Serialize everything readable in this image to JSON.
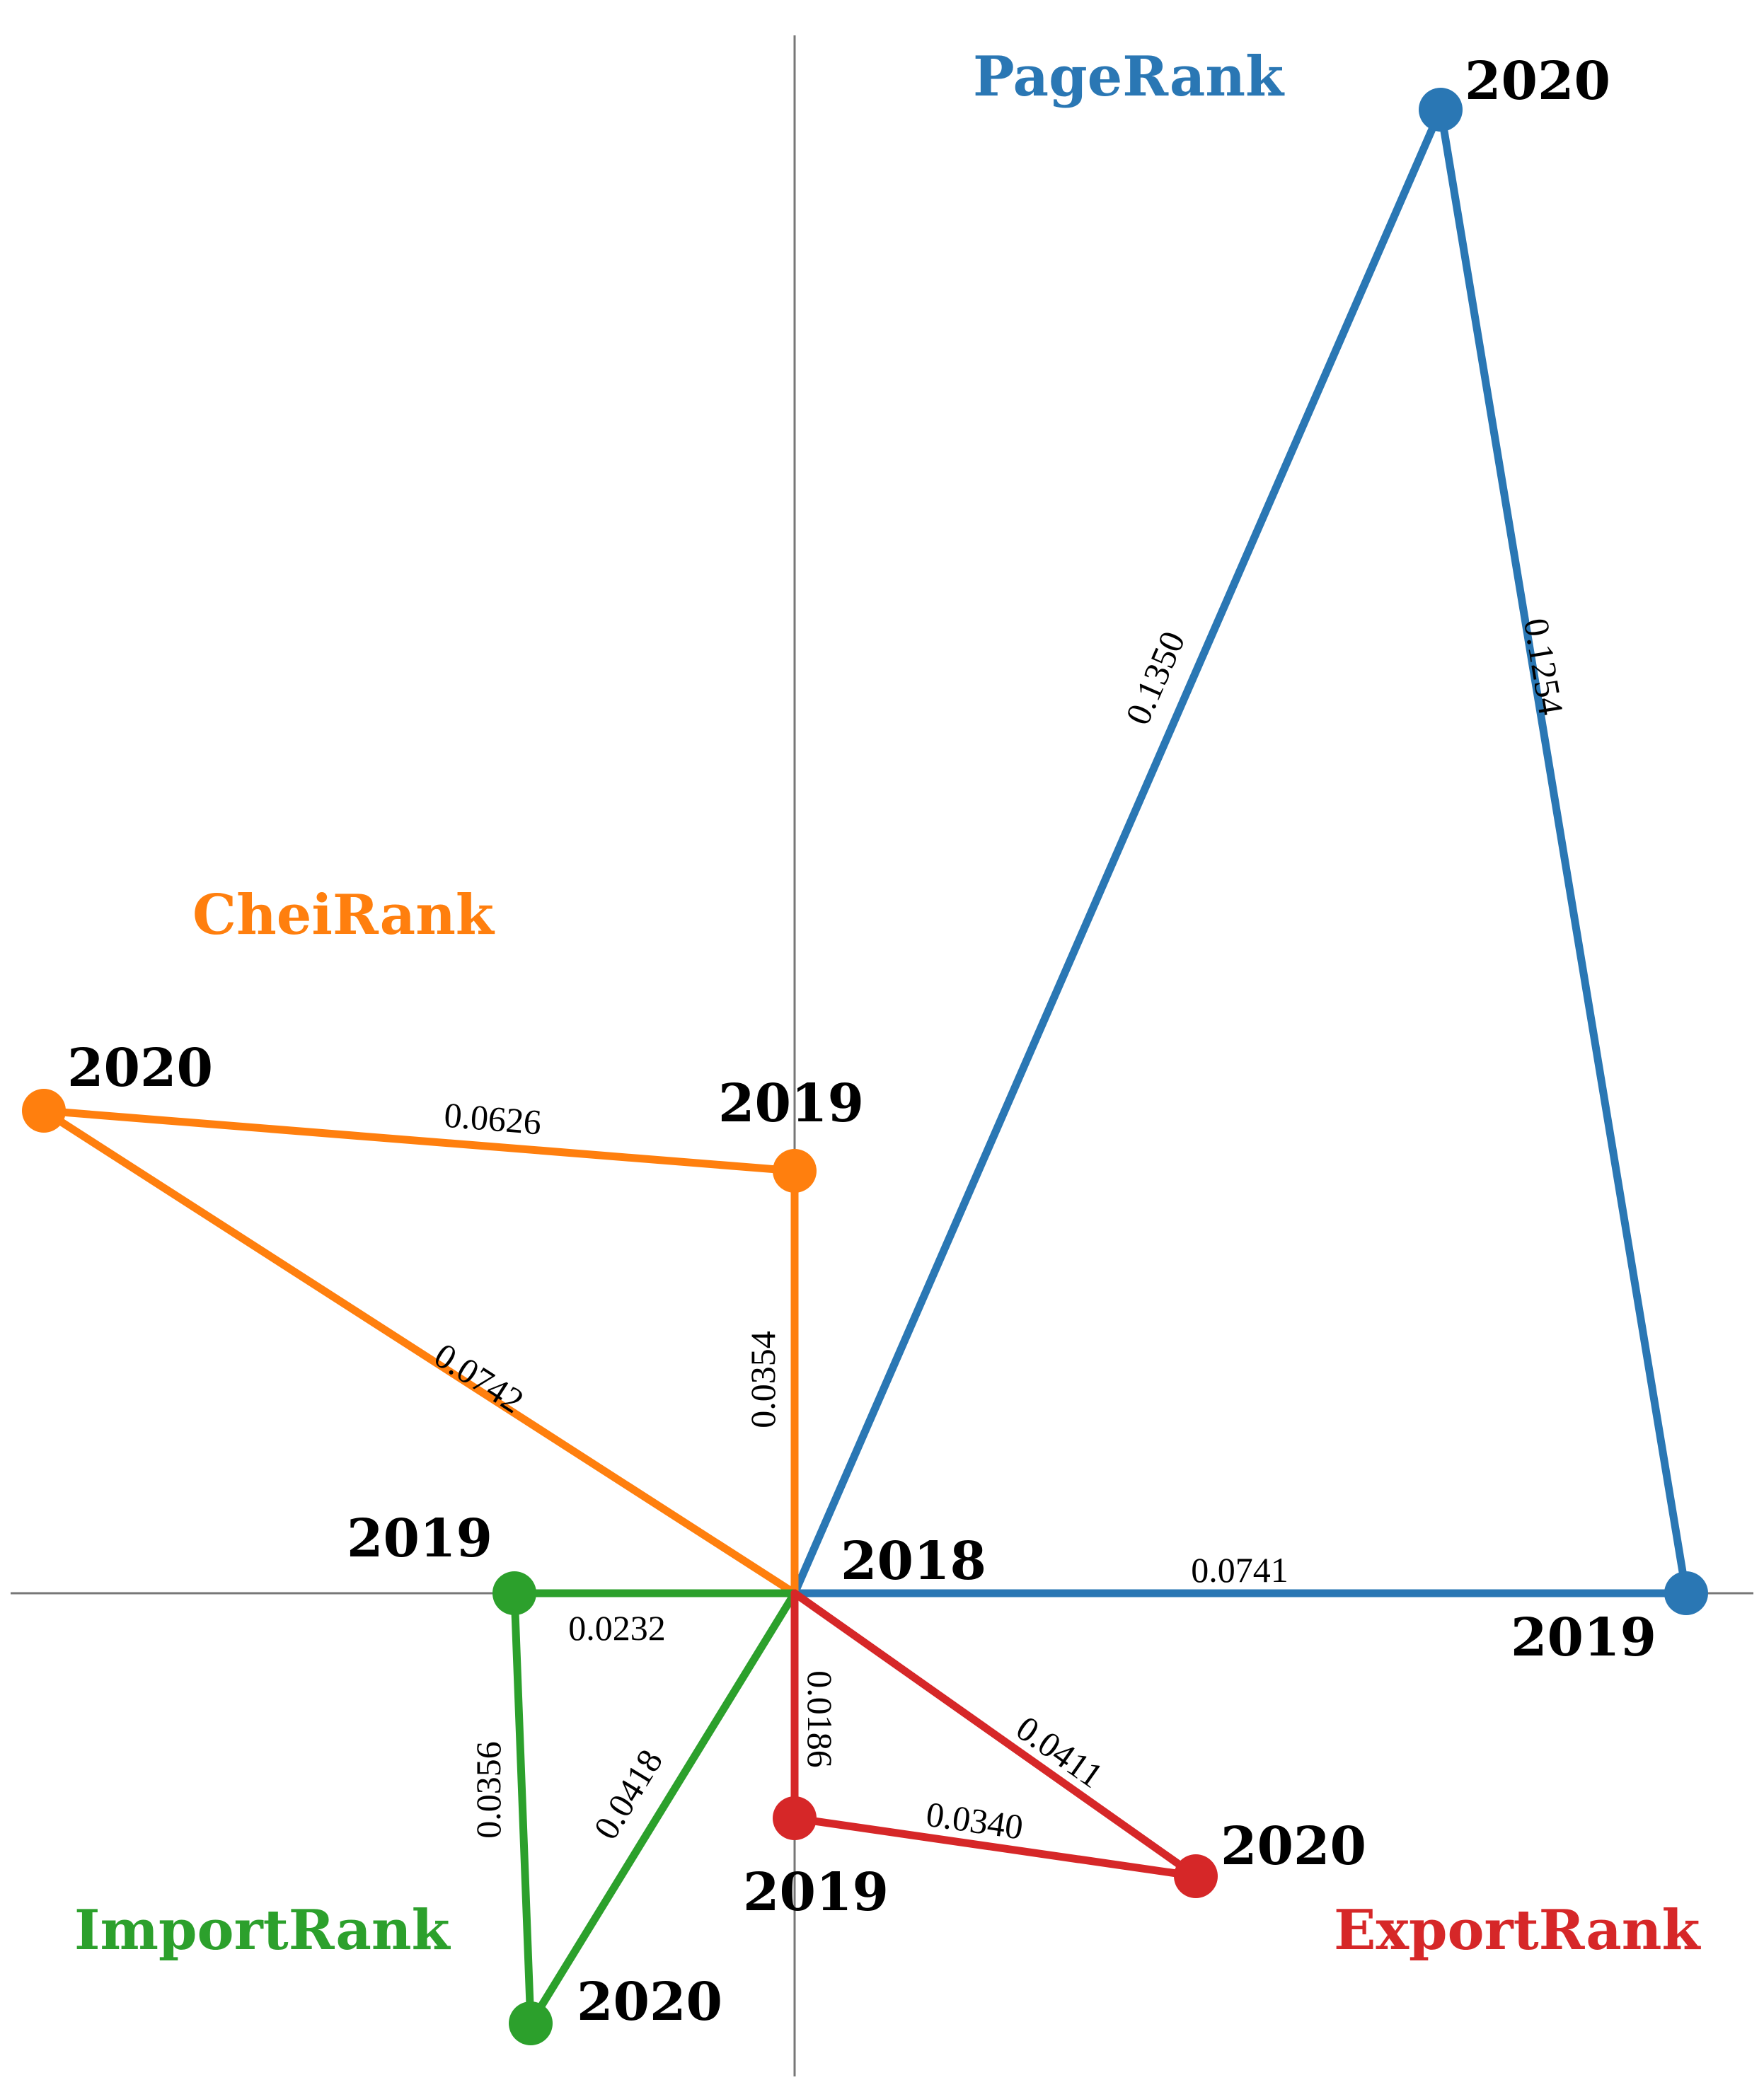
{
  "colors": {
    "pagerank": "#2a77b4",
    "cheirank": "#ff7f0e",
    "importrank": "#2ca02c",
    "exportrank": "#d62728",
    "axis": "#777777"
  },
  "center_label": "2018",
  "groups": [
    {
      "id": "pagerank",
      "title": "PageRank",
      "color": "#2a77b4",
      "nodes": [
        {
          "year": "2019"
        },
        {
          "year": "2020"
        }
      ],
      "edges": [
        {
          "from": "2018",
          "to": "2019",
          "value": "0.0741"
        },
        {
          "from": "2018",
          "to": "2020",
          "value": "0.1350"
        },
        {
          "from": "2019",
          "to": "2020",
          "value": "0.1254"
        }
      ]
    },
    {
      "id": "cheirank",
      "title": "CheiRank",
      "color": "#ff7f0e",
      "nodes": [
        {
          "year": "2019"
        },
        {
          "year": "2020"
        }
      ],
      "edges": [
        {
          "from": "2018",
          "to": "2019",
          "value": "0.0354"
        },
        {
          "from": "2018",
          "to": "2020",
          "value": "0.0742"
        },
        {
          "from": "2019",
          "to": "2020",
          "value": "0.0626"
        }
      ]
    },
    {
      "id": "importrank",
      "title": "ImportRank",
      "color": "#2ca02c",
      "nodes": [
        {
          "year": "2019"
        },
        {
          "year": "2020"
        }
      ],
      "edges": [
        {
          "from": "2018",
          "to": "2019",
          "value": "0.0232"
        },
        {
          "from": "2018",
          "to": "2020",
          "value": "0.0418"
        },
        {
          "from": "2019",
          "to": "2020",
          "value": "0.0356"
        }
      ]
    },
    {
      "id": "exportrank",
      "title": "ExportRank",
      "color": "#d62728",
      "nodes": [
        {
          "year": "2019"
        },
        {
          "year": "2020"
        }
      ],
      "edges": [
        {
          "from": "2018",
          "to": "2019",
          "value": "0.0186"
        },
        {
          "from": "2018",
          "to": "2020",
          "value": "0.0411"
        },
        {
          "from": "2019",
          "to": "2020",
          "value": "0.0340"
        }
      ]
    }
  ]
}
